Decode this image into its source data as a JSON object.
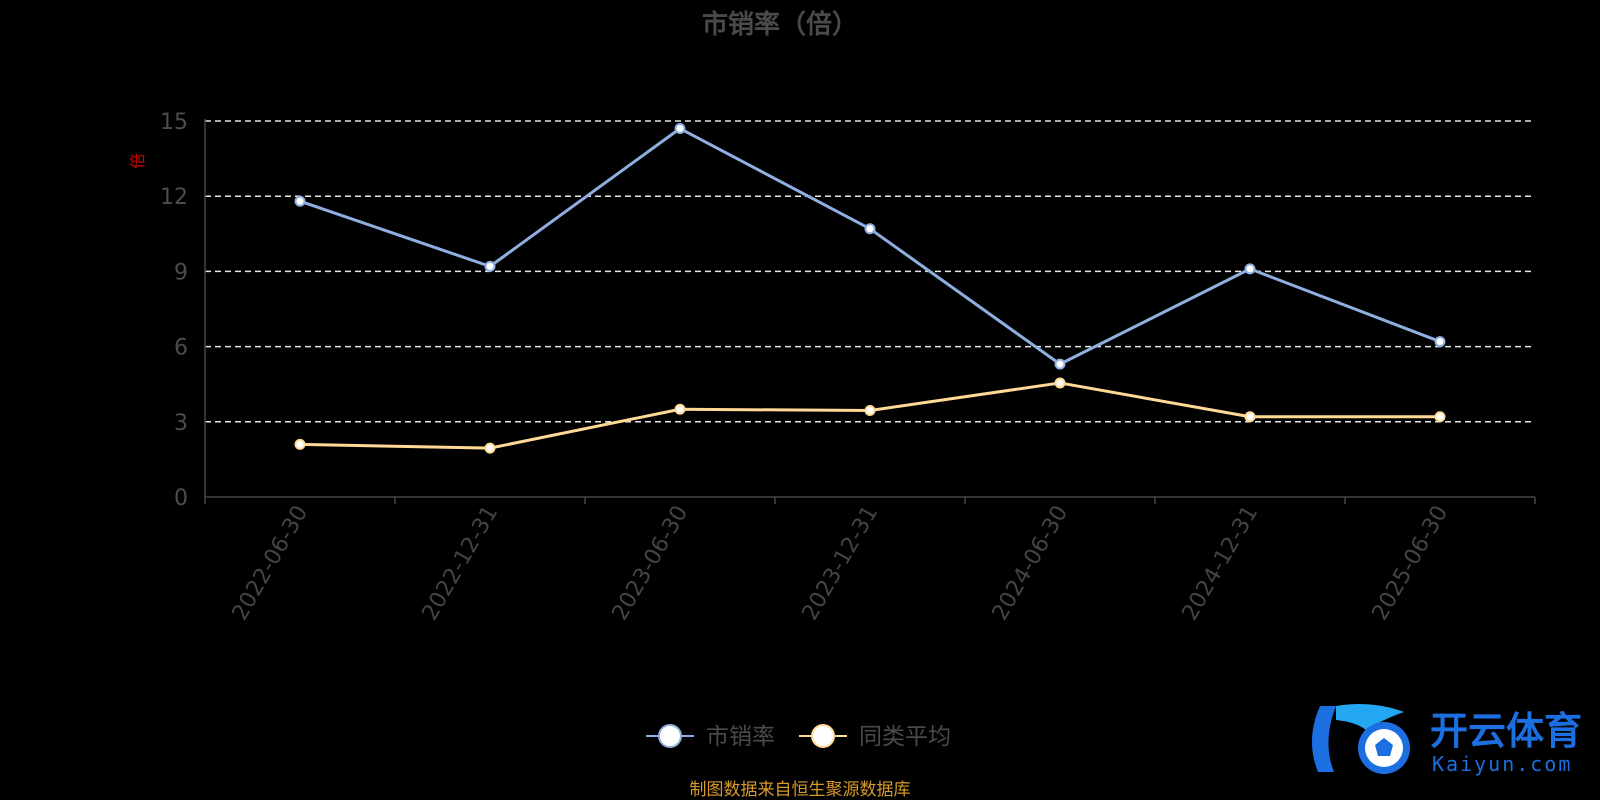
{
  "chart_data": {
    "type": "line",
    "title": "市销率（倍）",
    "ylabel": "倍",
    "xlabel": "",
    "categories": [
      "2022-06-30",
      "2022-12-31",
      "2023-06-30",
      "2023-12-31",
      "2024-06-30",
      "2024-12-31",
      "2025-06-30"
    ],
    "ylim": [
      0,
      15
    ],
    "yticks": [
      0,
      3,
      6,
      9,
      12,
      15
    ],
    "grid": "horizontal-dashed",
    "legend_position": "bottom-center",
    "series": [
      {
        "name": "市销率",
        "color": "#8fafe0",
        "values": [
          11.8,
          9.2,
          14.7,
          10.7,
          5.3,
          9.1,
          6.2
        ]
      },
      {
        "name": "同类平均",
        "color": "#ffd995",
        "values": [
          2.1,
          1.95,
          3.5,
          3.45,
          4.55,
          3.2,
          3.2
        ]
      }
    ]
  },
  "source_note": "制图数据来自恒生聚源数据库",
  "watermark": {
    "brand": "开云体育",
    "sub": "Kaiyun.com",
    "color": "#1b6fe0"
  }
}
